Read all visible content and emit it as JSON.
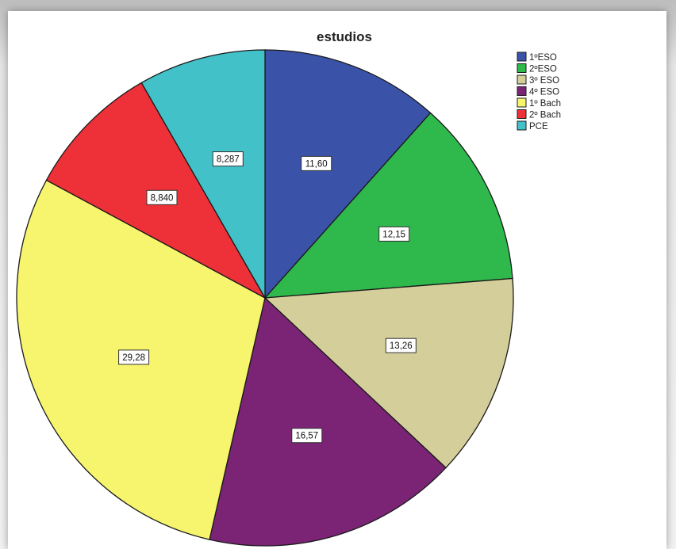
{
  "chart_data": {
    "type": "pie",
    "title": "estudios",
    "legend_position": "top-right",
    "slices": [
      {
        "name": "1ºESO",
        "value": 11.6,
        "label": "11,60",
        "color": "#3a52a8"
      },
      {
        "name": "2ºESO",
        "value": 12.15,
        "label": "12,15",
        "color": "#2fb84c"
      },
      {
        "name": "3º ESO",
        "value": 13.26,
        "label": "13,26",
        "color": "#d4cf9a"
      },
      {
        "name": "4º ESO",
        "value": 16.57,
        "label": "16,57",
        "color": "#7b2476"
      },
      {
        "name": "1º Bach",
        "value": 29.28,
        "label": "29,28",
        "color": "#f7f56e"
      },
      {
        "name": "2º Bach",
        "value": 8.84,
        "label": "8,840",
        "color": "#ee3039"
      },
      {
        "name": "PCE",
        "value": 8.287,
        "label": "8,287",
        "color": "#42c1c9"
      }
    ]
  }
}
